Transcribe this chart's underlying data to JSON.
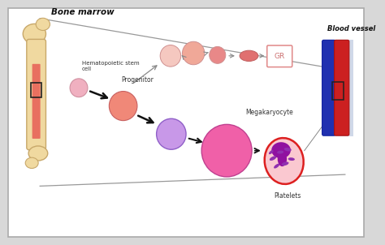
{
  "bg_outer": "#d8d8d8",
  "bg_inner": "#ffffff",
  "bone_marrow_label": "Bone marrow",
  "hsc_label": "Hematopoietic stem\ncell",
  "progenitor_label": "Progenitor",
  "megakaryocyte_label": "Megakaryocyte",
  "platelets_label": "Platelets",
  "blood_vessel_label": "Blood vessel",
  "gr_label": "GR",
  "bone_color": "#f0d9a0",
  "bone_edge": "#c8a86a",
  "marrow_color": "#e87060",
  "hsc_color": "#f0b0c0",
  "hsc_edge": "#d090a0",
  "progenitor_color": "#f08878",
  "progenitor_edge": "#c86060",
  "inter_color": "#c898e8",
  "inter_edge": "#9060c8",
  "mega_color": "#f060a8",
  "mega_edge": "#c04090",
  "ery1_color": "#f5c8c0",
  "ery2_color": "#f0a898",
  "ery3_color": "#e88888",
  "ery_ellipse_color": "#e07070",
  "platelet_outer_color": "#fac8d0",
  "platelet_outer_edge": "#dd2020",
  "platelet_nuc1": "#9010a0",
  "platelet_nuc2": "#6000b0",
  "platelet_small": "#9030b0",
  "gr_edge": "#e08888",
  "gr_text": "#cc7070",
  "arrow_dark": "#111111",
  "arrow_light": "#888888",
  "vessel_red": "#cc2020",
  "vessel_blue": "#2030b0",
  "vessel_bg": "#d0d8e8"
}
